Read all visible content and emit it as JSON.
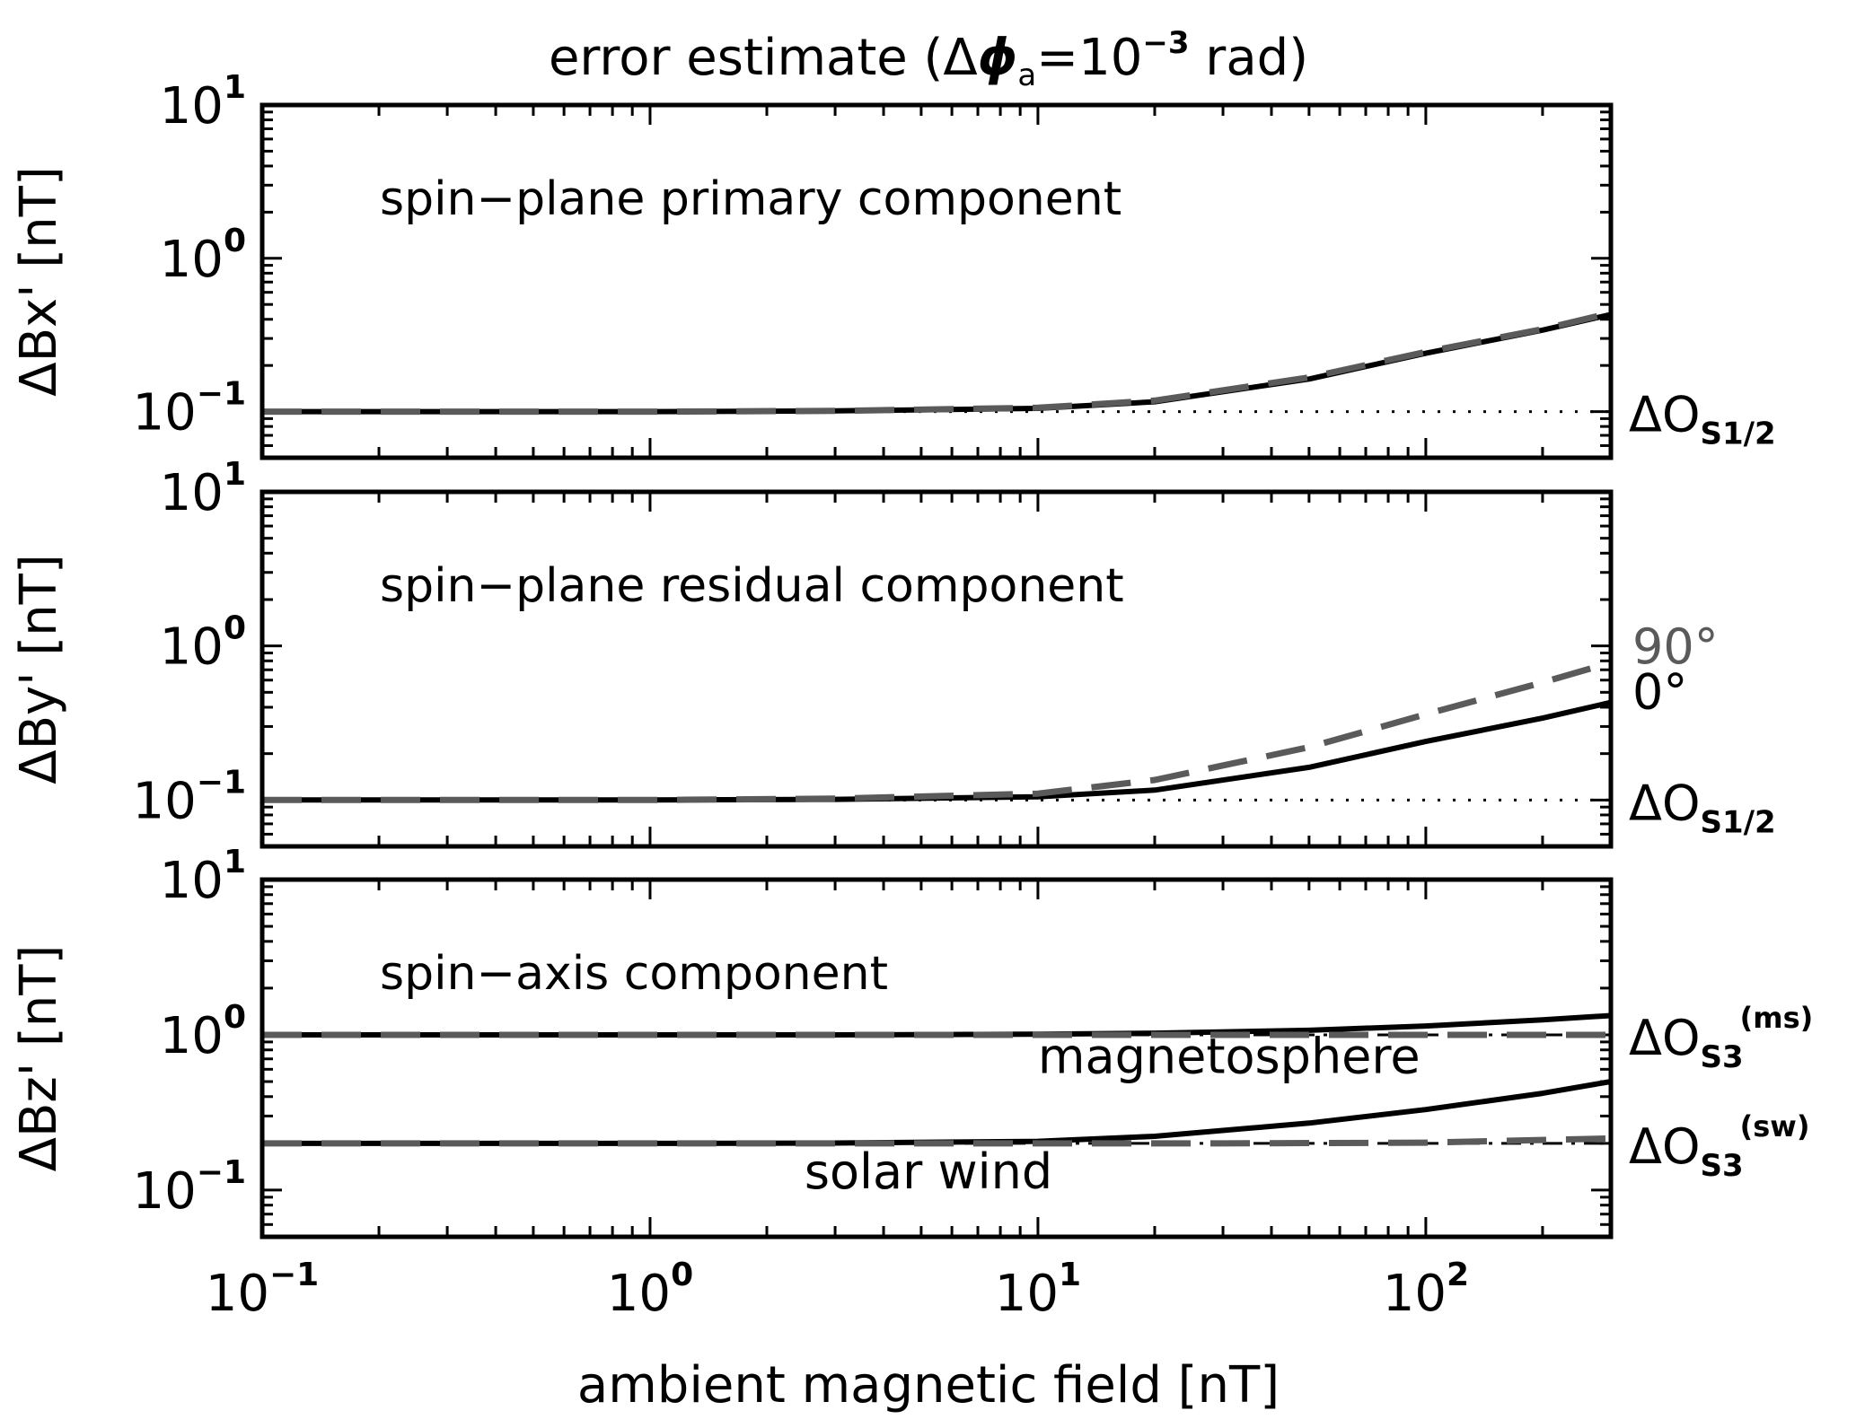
{
  "figure": {
    "title": {
      "prefix": "error estimate (",
      "delta": "Δ",
      "phi": "ϕ",
      "phi_sub": "a",
      "equals": "=10",
      "exponent": "−3",
      "suffix": " rad)"
    },
    "x_axis": {
      "label": "ambient magnetic field [nT]",
      "scale": "log",
      "range": [
        0.1,
        300
      ],
      "major_ticks": [
        {
          "value": 0.1,
          "base": "10",
          "exp": "−1"
        },
        {
          "value": 1,
          "base": "10",
          "exp": "0"
        },
        {
          "value": 10,
          "base": "10",
          "exp": "1"
        },
        {
          "value": 100,
          "base": "10",
          "exp": "2"
        }
      ]
    },
    "colors": {
      "curve_0deg": "#000000",
      "curve_90deg": "#5a5a5a",
      "axes": "#000000"
    }
  },
  "chart_data": [
    {
      "type": "line",
      "panel": "top",
      "ylabel": "ΔBx' [nT]",
      "annotation": "spin−plane primary component",
      "xscale": "log",
      "yscale": "log",
      "xlim": [
        0.1,
        300
      ],
      "ylim": [
        0.05,
        10
      ],
      "y_major_ticks": [
        {
          "value": 0.1,
          "base": "10",
          "exp": "−1"
        },
        {
          "value": 1,
          "base": "10",
          "exp": "0"
        },
        {
          "value": 10,
          "base": "10",
          "exp": "1"
        }
      ],
      "reference_lines": [
        {
          "y": 0.1,
          "style": "dotted",
          "label": "ΔO",
          "label_sub": "S1/2",
          "label_sup": ""
        }
      ],
      "series": [
        {
          "style": "solid",
          "color": "#000000",
          "x": [
            0.1,
            1,
            3,
            10,
            20,
            50,
            100,
            200,
            300
          ],
          "y": [
            0.1,
            0.1,
            0.101,
            0.105,
            0.116,
            0.163,
            0.24,
            0.34,
            0.43
          ]
        },
        {
          "style": "dashed",
          "color": "#5a5a5a",
          "x": [
            0.1,
            1,
            3,
            10,
            20,
            50,
            100,
            200,
            300
          ],
          "y": [
            0.1,
            0.1,
            0.101,
            0.106,
            0.118,
            0.167,
            0.245,
            0.345,
            0.44
          ]
        }
      ],
      "labels": []
    },
    {
      "type": "line",
      "panel": "middle",
      "ylabel": "ΔBy' [nT]",
      "annotation": "spin−plane residual component",
      "xscale": "log",
      "yscale": "log",
      "xlim": [
        0.1,
        300
      ],
      "ylim": [
        0.05,
        10
      ],
      "y_major_ticks": [
        {
          "value": 0.1,
          "base": "10",
          "exp": "−1"
        },
        {
          "value": 1,
          "base": "10",
          "exp": "0"
        },
        {
          "value": 10,
          "base": "10",
          "exp": "1"
        }
      ],
      "reference_lines": [
        {
          "y": 0.1,
          "style": "dotted",
          "label": "ΔO",
          "label_sub": "S1/2",
          "label_sup": ""
        }
      ],
      "series": [
        {
          "name": "0°",
          "style": "solid",
          "color": "#000000",
          "x": [
            0.1,
            1,
            3,
            10,
            20,
            50,
            100,
            200,
            300
          ],
          "y": [
            0.1,
            0.1,
            0.101,
            0.105,
            0.116,
            0.163,
            0.24,
            0.34,
            0.43
          ]
        },
        {
          "name": "90°",
          "style": "dashed",
          "color": "#5a5a5a",
          "x": [
            0.1,
            1,
            3,
            10,
            20,
            50,
            100,
            200,
            300
          ],
          "y": [
            0.1,
            0.1,
            0.102,
            0.11,
            0.135,
            0.22,
            0.36,
            0.58,
            0.78
          ]
        }
      ],
      "labels": [
        {
          "text": "90°",
          "color": "#5a5a5a",
          "y": 0.98
        },
        {
          "text": "0°",
          "color": "#000000",
          "y": 0.5
        }
      ]
    },
    {
      "type": "line",
      "panel": "bottom",
      "ylabel": "ΔBz' [nT]",
      "annotation": "spin−axis component",
      "xscale": "log",
      "yscale": "log",
      "xlim": [
        0.1,
        300
      ],
      "ylim": [
        0.05,
        10
      ],
      "y_major_ticks": [
        {
          "value": 0.1,
          "base": "10",
          "exp": "−1"
        },
        {
          "value": 1,
          "base": "10",
          "exp": "0"
        },
        {
          "value": 10,
          "base": "10",
          "exp": "1"
        }
      ],
      "reference_lines": [
        {
          "y": 1.0,
          "style": "dashdot",
          "label": "ΔO",
          "label_sub": "S3",
          "label_sup": "(ms)"
        },
        {
          "y": 0.2,
          "style": "dashdot",
          "label": "ΔO",
          "label_sub": "S3",
          "label_sup": "(sw)"
        }
      ],
      "series": [
        {
          "name": "magnetosphere",
          "style": "solid",
          "color": "#000000",
          "x": [
            0.1,
            1,
            3,
            10,
            20,
            50,
            100,
            200,
            300
          ],
          "y": [
            1.0,
            1.0,
            1.0,
            1.01,
            1.025,
            1.07,
            1.14,
            1.25,
            1.33
          ]
        },
        {
          "name": "magnetosphere",
          "style": "dashed",
          "color": "#5a5a5a",
          "x": [
            0.1,
            1,
            3,
            10,
            30,
            100,
            300
          ],
          "y": [
            1.0,
            1.0,
            1.0,
            1.0,
            1.0,
            1.0,
            1.0
          ]
        },
        {
          "name": "solar wind",
          "style": "solid",
          "color": "#000000",
          "x": [
            0.1,
            1,
            3,
            10,
            20,
            50,
            100,
            200,
            300
          ],
          "y": [
            0.2,
            0.2,
            0.201,
            0.206,
            0.222,
            0.27,
            0.33,
            0.42,
            0.5
          ]
        },
        {
          "name": "solar wind",
          "style": "dashed",
          "color": "#5a5a5a",
          "x": [
            0.1,
            1,
            3,
            10,
            30,
            100,
            300
          ],
          "y": [
            0.2,
            0.2,
            0.2,
            0.2,
            0.2,
            0.202,
            0.215
          ]
        }
      ],
      "labels": [
        {
          "text": "magnetosphere",
          "color": "#000000",
          "x": 10,
          "y": 0.72
        },
        {
          "text": "solar wind",
          "color": "#000000",
          "x": 2.5,
          "y": 0.13
        }
      ]
    }
  ]
}
